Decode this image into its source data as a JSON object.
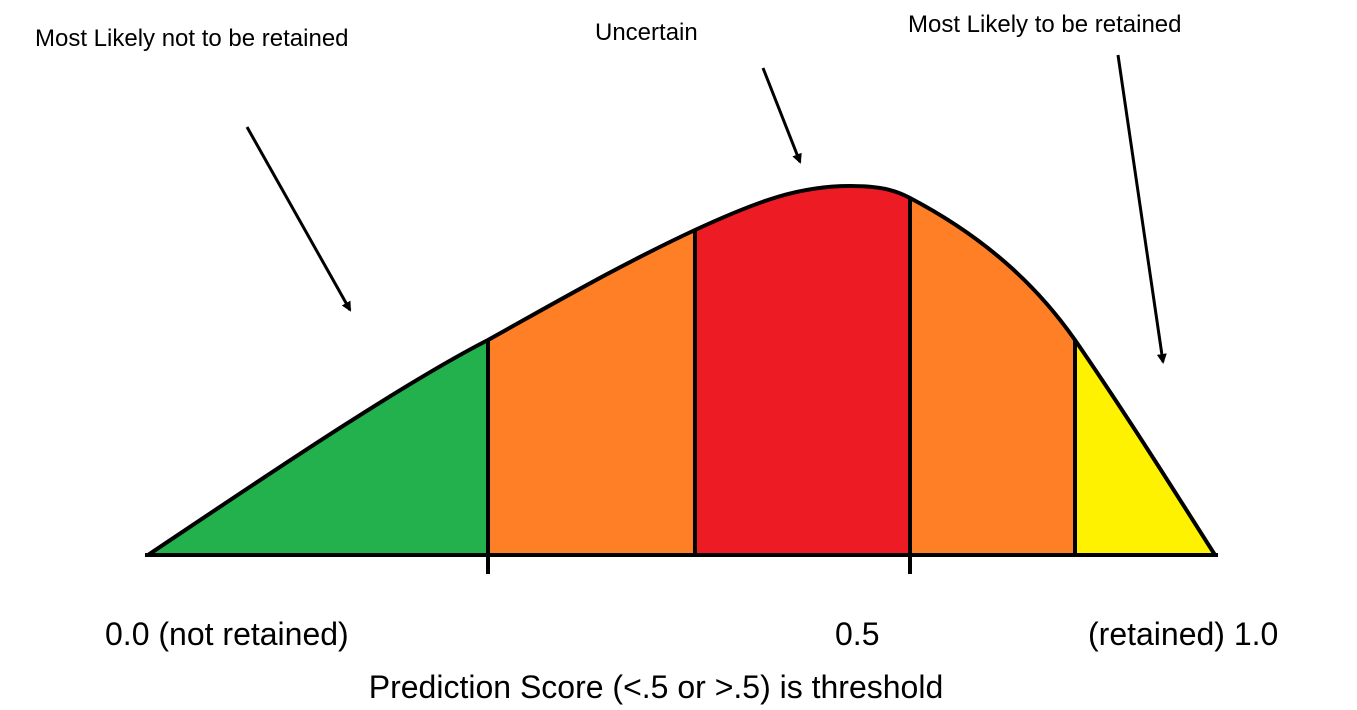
{
  "annotations": {
    "left": "Most Likely not to be retained",
    "middle": "Uncertain",
    "right": "Most Likely to be retained"
  },
  "axis": {
    "labels": [
      "0.0 (not retained)",
      "0.5",
      "(retained) 1.0"
    ],
    "title": "Prediction Score (<.5 or >.5) is threshold"
  }
}
